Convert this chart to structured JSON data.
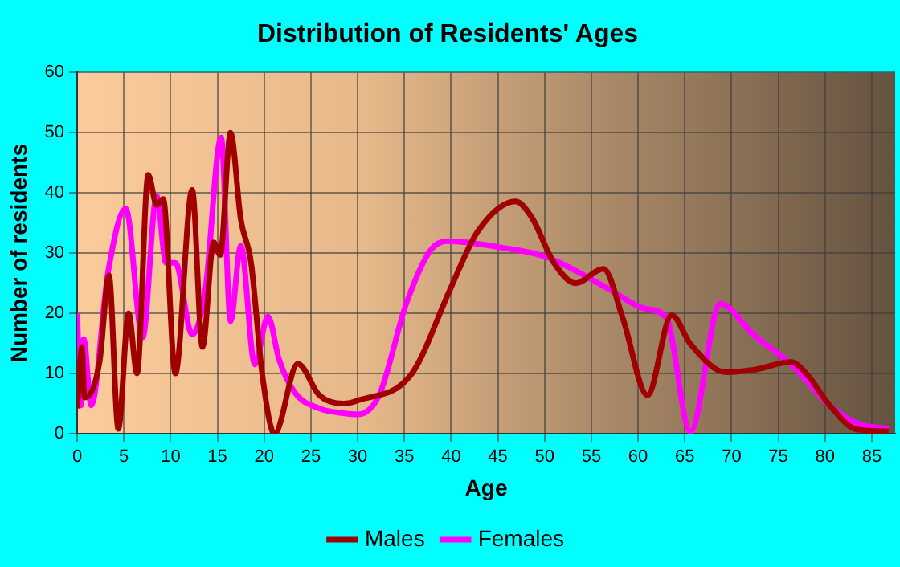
{
  "chart_data": {
    "type": "line",
    "title": "Distribution of Residents' Ages",
    "xlabel": "Age",
    "ylabel": "Number of residents",
    "xlim": [
      0,
      87.5
    ],
    "xticks": [
      0,
      5,
      10,
      15,
      20,
      25,
      30,
      35,
      40,
      45,
      50,
      55,
      60,
      65,
      70,
      75,
      80,
      85
    ],
    "ylim": [
      0,
      60
    ],
    "yticks": [
      0,
      10,
      20,
      30,
      40,
      50,
      60
    ],
    "grid": true,
    "legend": "bottom",
    "marker": "none",
    "line_style": "solid",
    "series": [
      {
        "name": "Males",
        "color": "#a00000",
        "x": [
          0,
          0.5,
          0.8,
          2.4,
          3.4,
          4.4,
          5.5,
          6.4,
          7.6,
          8.5,
          9.2,
          10.5,
          12.3,
          13.4,
          14.6,
          15.3,
          16.4,
          17.5,
          18.6,
          19.8,
          21.1,
          23.6,
          25.9,
          28.5,
          30,
          35.8,
          39.9,
          42.8,
          46.9,
          48.6,
          51,
          53.3,
          56.3,
          58.4,
          61,
          63.6,
          65.6,
          69.4,
          72.3,
          76.4,
          78.1,
          80.5,
          83.4,
          86.8
        ],
        "values": [
          4.2,
          14.4,
          6,
          12,
          26.3,
          0.8,
          20,
          10,
          43,
          38,
          39,
          10,
          40.5,
          14.4,
          31.8,
          29.7,
          50,
          35.6,
          28.4,
          9.8,
          0,
          11.6,
          6.4,
          5,
          5.5,
          10,
          24,
          33.5,
          38.6,
          36,
          28.4,
          25,
          27.4,
          19,
          6.4,
          19.7,
          14.9,
          10.2,
          10.6,
          11.9,
          9.8,
          4.7,
          0.7,
          0.4
        ]
      },
      {
        "name": "Females",
        "color": "#ff00ff",
        "x": [
          0,
          0.4,
          0.7,
          1.5,
          3.3,
          5.2,
          7,
          8.5,
          9.5,
          10.5,
          12.3,
          13.7,
          15.4,
          16.4,
          17.5,
          19,
          20.4,
          21.6,
          23.3,
          25.9,
          28.5,
          30,
          32.3,
          35.2,
          37.8,
          39.6,
          45.1,
          50.3,
          56.7,
          60.7,
          63,
          65.6,
          68.8,
          72.3,
          76.4,
          80.5,
          83.4,
          86.8
        ],
        "values": [
          20,
          4.7,
          15.7,
          4.7,
          26.8,
          37.4,
          16,
          39.5,
          28.4,
          28.4,
          16.5,
          23.8,
          49.2,
          18.7,
          31.2,
          11.5,
          19.5,
          12.3,
          6.8,
          4.2,
          3.4,
          3.2,
          6.4,
          21.6,
          30.5,
          32,
          31,
          29.3,
          24.2,
          20.8,
          19.3,
          0.4,
          21.6,
          16.5,
          11.5,
          4.7,
          1.7,
          0.8
        ]
      }
    ]
  }
}
